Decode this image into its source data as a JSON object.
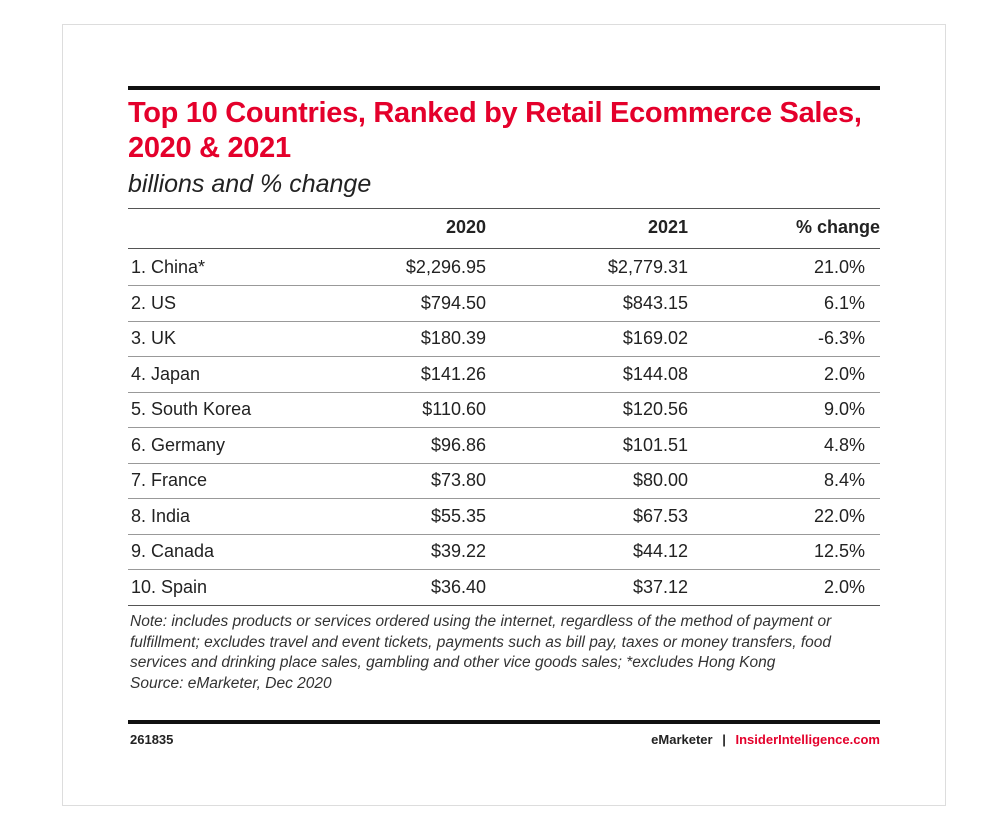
{
  "chart_data": {
    "type": "table",
    "title": "Top 10 Countries, Ranked by Retail Ecommerce Sales, 2020 & 2021",
    "subtitle": "billions and % change",
    "columns": [
      "",
      "2020",
      "2021",
      "% change"
    ],
    "rows": [
      [
        "1. China*",
        "$2,296.95",
        "$2,779.31",
        "21.0%"
      ],
      [
        "2. US",
        "$794.50",
        "$843.15",
        "6.1%"
      ],
      [
        "3. UK",
        "$180.39",
        "$169.02",
        "-6.3%"
      ],
      [
        "4. Japan",
        "$141.26",
        "$144.08",
        "2.0%"
      ],
      [
        "5. South Korea",
        "$110.60",
        "$120.56",
        "9.0%"
      ],
      [
        "6. Germany",
        "$96.86",
        "$101.51",
        "4.8%"
      ],
      [
        "7. France",
        "$73.80",
        "$80.00",
        "8.4%"
      ],
      [
        "8. India",
        "$55.35",
        "$67.53",
        "22.0%"
      ],
      [
        "9. Canada",
        "$39.22",
        "$44.12",
        "12.5%"
      ],
      [
        "10. Spain",
        "$36.40",
        "$37.12",
        "2.0%"
      ]
    ],
    "note": "Note: includes products or services ordered using the internet, regardless of the method of payment or fulfillment; excludes travel and event tickets, payments such as bill pay, taxes or money transfers, food services and drinking place sales, gambling and other vice goods sales; *excludes Hong Kong",
    "source": "Source: eMarketer, Dec 2020"
  },
  "footer": {
    "chart_id": "261835",
    "brand": "eMarketer",
    "separator": "|",
    "site": "InsiderIntelligence.com"
  },
  "colors": {
    "accent": "#e4002b",
    "text": "#222222"
  }
}
